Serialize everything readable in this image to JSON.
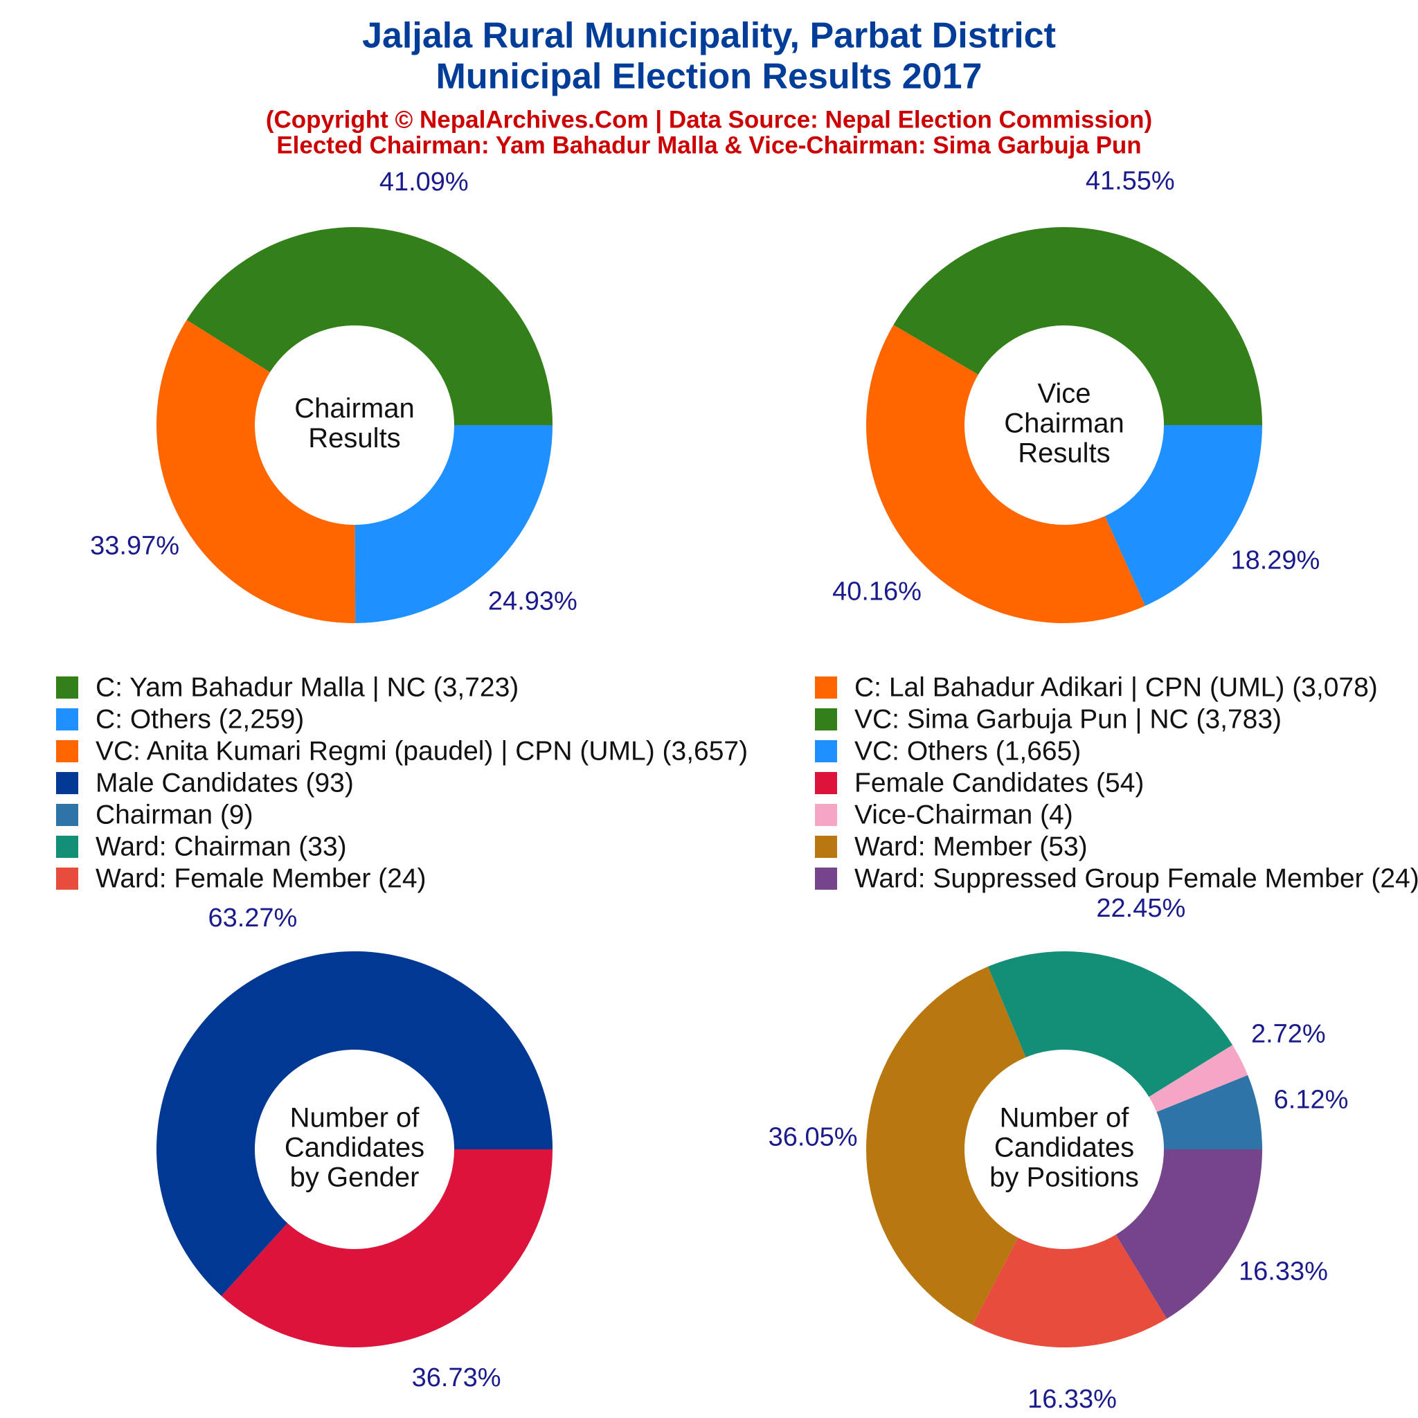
{
  "header": {
    "title": [
      "Jaljala Rural Municipality, Parbat District",
      "Municipal Election Results 2017"
    ],
    "subtitle": [
      "(Copyright © NepalArchives.Com | Data Source: Nepal Election Commission)",
      "Elected Chairman: Yam Bahadur Malla & Vice-Chairman: Sima Garbuja Pun"
    ]
  },
  "chart_data": [
    {
      "type": "donut",
      "center_label": [
        "Chairman",
        "Results"
      ],
      "categories": [
        "C: Yam Bahadur Malla | NC (3,723)",
        "C: Lal Bahadur Adikari | CPN (UML) (3,078)",
        "C: Others (2,259)"
      ],
      "values": [
        41.09,
        33.97,
        24.93
      ],
      "value_labels": [
        "41.09%",
        "33.97%",
        "24.93%"
      ],
      "colors": [
        "#33801a",
        "#ff6600",
        "#1e90ff"
      ]
    },
    {
      "type": "donut",
      "center_label": [
        "Vice",
        "Chairman",
        "Results"
      ],
      "categories": [
        "VC: Sima Garbuja Pun | NC (3,783)",
        "VC: Anita Kumari Regmi (paudel) | CPN (UML) (3,657)",
        "VC: Others (1,665)"
      ],
      "values": [
        41.55,
        40.16,
        18.29
      ],
      "value_labels": [
        "41.55%",
        "40.16%",
        "18.29%"
      ],
      "colors": [
        "#33801a",
        "#ff6600",
        "#1e90ff"
      ]
    },
    {
      "type": "donut",
      "center_label": [
        "Number of",
        "Candidates",
        "by Gender"
      ],
      "categories": [
        "Male Candidates (93)",
        "Female Candidates (54)"
      ],
      "values": [
        63.27,
        36.73
      ],
      "value_labels": [
        "63.27%",
        "36.73%"
      ],
      "colors": [
        "#003893",
        "#dc143c"
      ]
    },
    {
      "type": "donut",
      "center_label": [
        "Number of",
        "Candidates",
        "by Positions"
      ],
      "categories": [
        "Chairman (9)",
        "Vice-Chairman (4)",
        "Ward: Chairman (33)",
        "Ward: Member (53)",
        "Ward: Female Member (24)",
        "Ward: Suppressed Group Female Member (24)"
      ],
      "values": [
        6.12,
        2.72,
        22.45,
        36.05,
        16.33,
        16.33
      ],
      "value_labels": [
        "6.12%",
        "2.72%",
        "22.45%",
        "36.05%",
        "16.33%",
        "16.33%"
      ],
      "colors": [
        "#2e74a6",
        "#f4a6c4",
        "#148f77",
        "#b8770f",
        "#e74c3c",
        "#76448a"
      ]
    }
  ]
}
